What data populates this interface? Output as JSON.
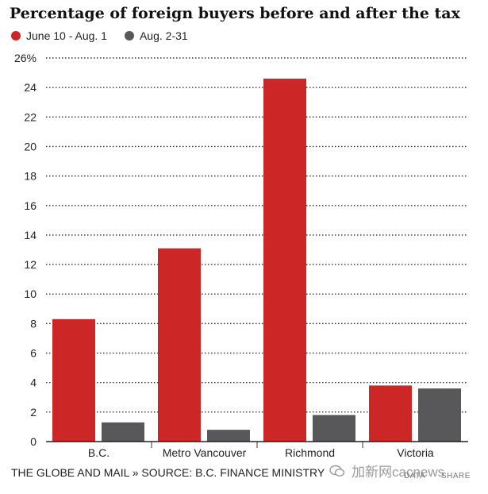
{
  "chart_data": {
    "type": "bar",
    "title": "Percentage of foreign buyers before and after the tax",
    "categories": [
      "B.C.",
      "Metro Vancouver",
      "Richmond",
      "Victoria"
    ],
    "series": [
      {
        "name": "June 10 - Aug. 1",
        "color": "#cc2626",
        "values": [
          8.3,
          13.1,
          24.6,
          3.8
        ]
      },
      {
        "name": "Aug. 2-31",
        "color": "#58585a",
        "values": [
          1.3,
          0.8,
          1.8,
          3.6
        ]
      }
    ],
    "ylim": [
      0,
      26
    ],
    "yticks": [
      0,
      2,
      4,
      6,
      8,
      10,
      12,
      14,
      16,
      18,
      20,
      22,
      24,
      26
    ],
    "ytick_labels": [
      "0",
      "2",
      "4",
      "6",
      "8",
      "10",
      "12",
      "14",
      "16",
      "18",
      "20",
      "22",
      "24",
      "26%"
    ],
    "grid": "dotted",
    "xlabel": "",
    "ylabel": ""
  },
  "footer": {
    "source": "THE GLOBE AND MAIL » SOURCE: B.C. FINANCE MINISTRY",
    "data_link": "DATA",
    "share_link": "SHARE"
  },
  "watermark": {
    "text": "加新网cacnews"
  }
}
